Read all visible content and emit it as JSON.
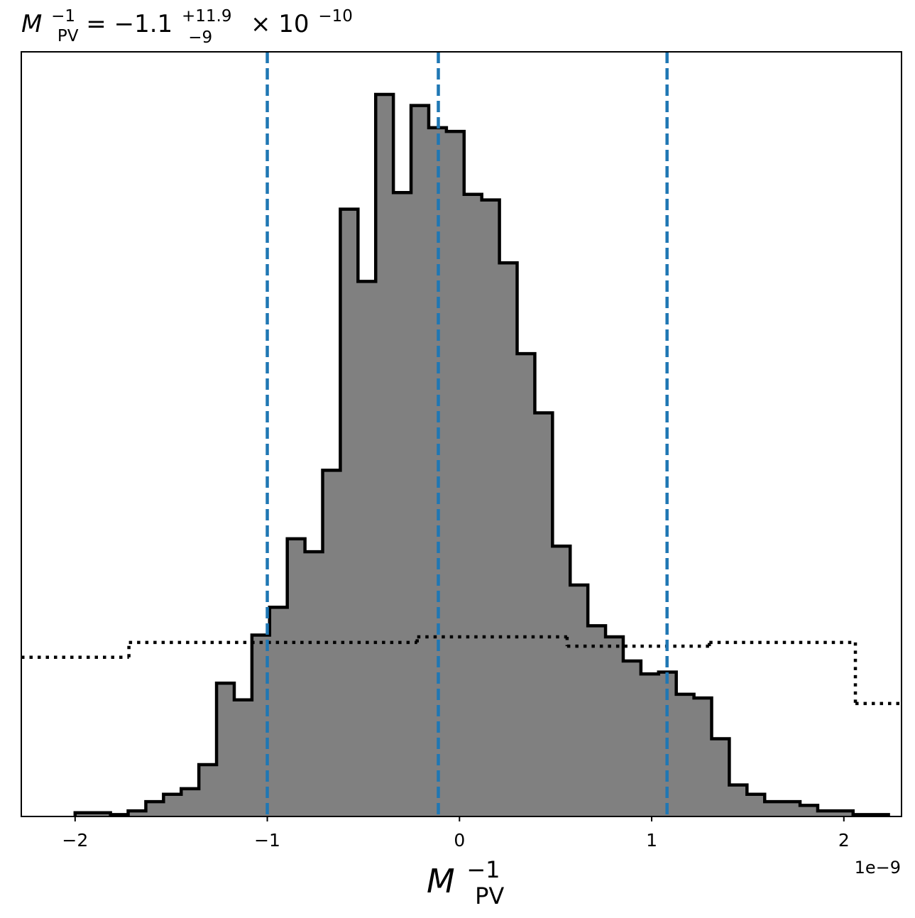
{
  "chart_data": {
    "type": "histogram",
    "title": {
      "base": "M",
      "base_sup": "−1",
      "base_sub": "PV",
      "equals": " = −1.1",
      "err_plus": "+11.9",
      "err_minus": "−9",
      "times": " × 10",
      "exponent": "−10"
    },
    "xlabel": {
      "base": "M",
      "sup": "−1",
      "sub": "PV"
    },
    "ylabel": "",
    "x_offset_label": "1e−9",
    "x_unit_scale": 1e-09,
    "xlim": [
      -2.28,
      2.3
    ],
    "ylim": [
      0,
      4.13
    ],
    "xticks": [
      {
        "value": -2,
        "label": "−2"
      },
      {
        "value": -1,
        "label": "−1"
      },
      {
        "value": 0,
        "label": "0"
      },
      {
        "value": 1,
        "label": "1"
      },
      {
        "value": 2,
        "label": "2"
      }
    ],
    "yticks_visible": false,
    "grid": false,
    "posterior_histogram": {
      "bin_edges": [
        -2.0,
        -1.908,
        -1.816,
        -1.724,
        -1.632,
        -1.54,
        -1.448,
        -1.356,
        -1.264,
        -1.172,
        -1.08,
        -0.988,
        -0.896,
        -0.804,
        -0.712,
        -0.62,
        -0.528,
        -0.436,
        -0.344,
        -0.252,
        -0.16,
        -0.068,
        0.024,
        0.116,
        0.208,
        0.3,
        0.392,
        0.484,
        0.576,
        0.668,
        0.76,
        0.852,
        0.944,
        1.036,
        1.128,
        1.22,
        1.312,
        1.404,
        1.496,
        1.588,
        1.68,
        1.772,
        1.864,
        1.956,
        2.048,
        2.14,
        2.232
      ],
      "values": [
        0.02,
        0.02,
        0.01,
        0.03,
        0.08,
        0.12,
        0.15,
        0.28,
        0.72,
        0.63,
        0.98,
        1.13,
        1.5,
        1.43,
        1.87,
        3.28,
        2.89,
        3.9,
        3.37,
        3.84,
        3.72,
        3.7,
        3.36,
        3.33,
        2.99,
        2.5,
        2.18,
        1.46,
        1.25,
        1.03,
        0.97,
        0.84,
        0.77,
        0.78,
        0.66,
        0.64,
        0.42,
        0.17,
        0.12,
        0.08,
        0.08,
        0.06,
        0.03,
        0.03,
        0.01,
        0.01
      ],
      "fill_color": "#808080",
      "edge_color": "#000000"
    },
    "prior_histogram": {
      "bin_edges": [
        -2.28,
        -1.72,
        -0.22,
        0.56,
        1.3,
        2.06,
        2.3
      ],
      "values": [
        0.86,
        0.94,
        0.97,
        0.92,
        0.94,
        0.61
      ],
      "style": "dotted",
      "color": "#000000"
    },
    "vertical_lines": [
      {
        "x": -1.0,
        "meaning": "lower bound"
      },
      {
        "x": -0.11,
        "meaning": "median"
      },
      {
        "x": 1.08,
        "meaning": "upper bound"
      }
    ],
    "vertical_line_color": "#1f77b4",
    "vertical_line_style": "dashed"
  }
}
